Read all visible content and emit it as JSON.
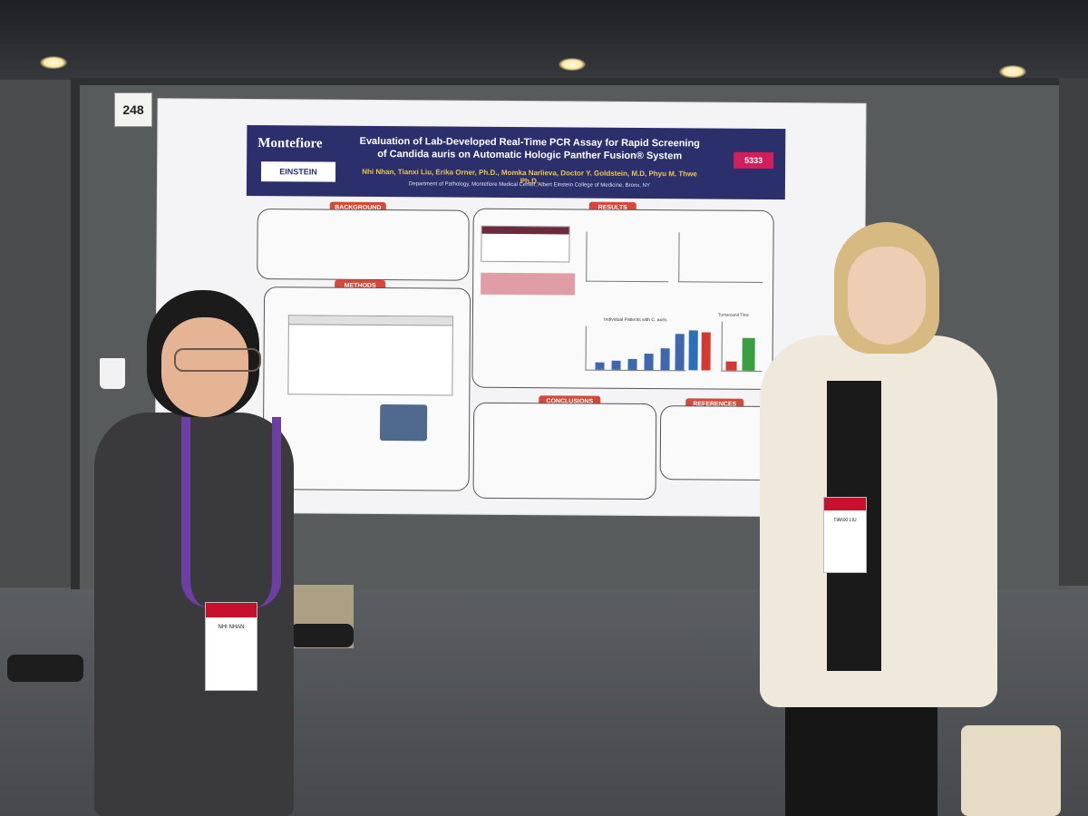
{
  "booth": {
    "number": "248"
  },
  "poster": {
    "logo_montefiore": "Montefiore",
    "logo_einstein": "EINSTEIN",
    "title_line1": "Evaluation of Lab-Developed Real-Time PCR Assay for Rapid Screening",
    "title_line2": "of Candida auris on Automatic Hologic Panther Fusion® System",
    "authors": "Nhi Nhan, Tianxi Liu, Erika Orner, Ph.D., Momka Narlieva, Doctor Y. Goldstein, M.D, Phyu M. Thwe Ph.D.",
    "department": "Department of Pathology, Montefiore Medical Center, Albert Einstein College of Medicine, Bronx, NY",
    "poster_id": "5333",
    "sections": {
      "background": "BACKGROUND",
      "methods": "METHODS",
      "results": "RESULTS",
      "conclusions": "CONCLUSIONS",
      "references": "REFERENCES"
    },
    "chart_titles": {
      "patients": "Individual Patients with C. auris",
      "turnaround": "Turnaround Time"
    }
  },
  "badges": {
    "left_name": "NHI NHAN",
    "right_name": "TIANXI LIU"
  },
  "colors": {
    "poster_header": "#2b2f6b",
    "section_label": "#d24a39",
    "poster_id_badge": "#d11f5b",
    "lanyard": "#6d3fa5"
  }
}
